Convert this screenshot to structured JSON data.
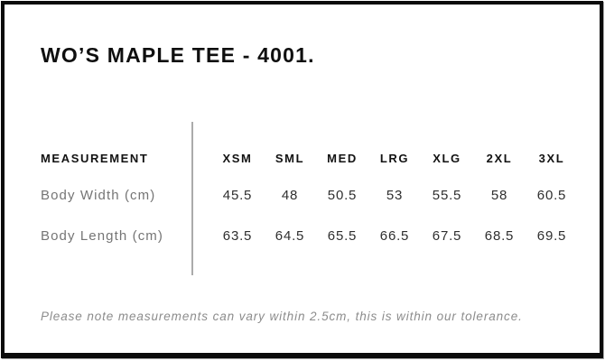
{
  "title": "WO’S MAPLE TEE - 4001.",
  "table": {
    "label_header": "MEASUREMENT",
    "size_headers": [
      "XSM",
      "SML",
      "MED",
      "LRG",
      "XLG",
      "2XL",
      "3XL"
    ],
    "rows": [
      {
        "label": "Body Width (cm)",
        "values": [
          "45.5",
          "48",
          "50.5",
          "53",
          "55.5",
          "58",
          "60.5"
        ]
      },
      {
        "label": "Body Length (cm)",
        "values": [
          "63.5",
          "64.5",
          "65.5",
          "66.5",
          "67.5",
          "68.5",
          "69.5"
        ]
      }
    ]
  },
  "footnote": "Please note measurements can vary within 2.5cm, this is within our tolerance.",
  "colors": {
    "frame_border": "#0b0b0b",
    "text_primary": "#0f0f0f",
    "text_values": "#2f2f2f",
    "text_muted": "#757575",
    "footnote_text": "#8c8c8c",
    "divider": "#ababab",
    "background": "#ffffff"
  }
}
